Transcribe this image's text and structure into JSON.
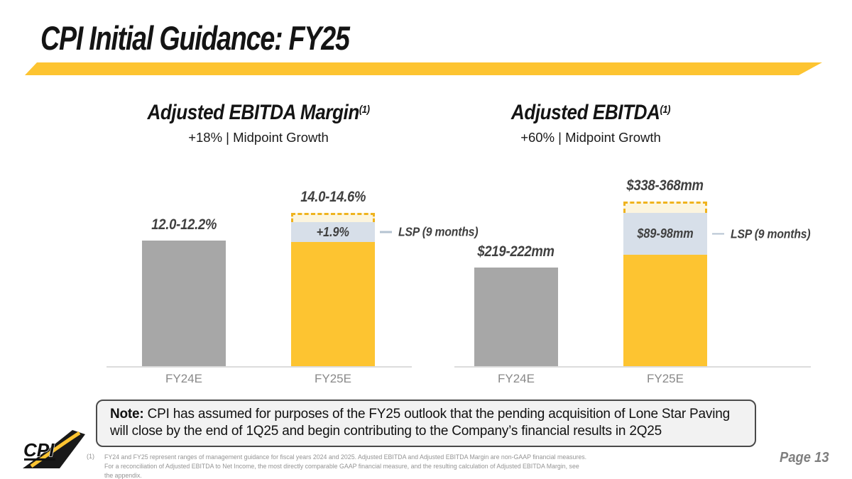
{
  "header": {
    "title": "CPI Initial Guidance: FY25"
  },
  "chart_data": [
    {
      "type": "bar",
      "title": "Adjusted EBITDA Margin",
      "title_footnote_ref": "(1)",
      "subtitle": "+18% | Midpoint Growth",
      "unit": "%",
      "categories": [
        "FY24E",
        "FY25E"
      ],
      "ylim": [
        0,
        16
      ],
      "legend": "none",
      "grid": false,
      "bars": [
        {
          "category": "FY24E",
          "label": "12.0-12.2%",
          "style": "solid",
          "value": 12.1
        },
        {
          "category": "FY25E",
          "label": "14.0-14.6%",
          "style": "stacked",
          "annotation": "LSP (9 months)",
          "segments": [
            {
              "name": "organic-base",
              "value": 12.0
            },
            {
              "name": "lsp-contribution",
              "value": 1.9,
              "label": "+1.9%"
            },
            {
              "name": "guidance-range-top",
              "value": 0.6
            }
          ]
        }
      ]
    },
    {
      "type": "bar",
      "title": "Adjusted EBITDA",
      "title_footnote_ref": "(1)",
      "subtitle": "+60% | Midpoint Growth",
      "unit": "$mm",
      "categories": [
        "FY24E",
        "FY25E"
      ],
      "ylim": [
        0,
        400
      ],
      "legend": "none",
      "grid": false,
      "bars": [
        {
          "category": "FY24E",
          "label": "$219-222mm",
          "style": "solid",
          "value": 220.5
        },
        {
          "category": "FY25E",
          "label": "$338-368mm",
          "style": "stacked",
          "annotation": "LSP (9 months)",
          "segments": [
            {
              "name": "organic-base",
              "value": 249
            },
            {
              "name": "lsp-contribution",
              "value": 93.5,
              "label": "$89-98mm"
            },
            {
              "name": "guidance-range-top",
              "value": 20
            }
          ]
        }
      ]
    }
  ],
  "note": {
    "label": "Note:",
    "text": "CPI has assumed for purposes of the FY25 outlook that the pending acquisition of Lone Star Paving will close by the end of 1Q25 and begin contributing to the Company’s financial results in 2Q25"
  },
  "footnote": {
    "marker": "(1)",
    "text": "FY24 and FY25 represent ranges of management guidance for fiscal years 2024 and 2025. Adjusted EBITDA and Adjusted EBITDA Margin are non-GAAP financial measures. For a reconciliation of Adjusted EBITDA to Net Income, the most directly comparable GAAP financial measure, and the resulting calculation of Adjusted EBITDA Margin, see the appendix."
  },
  "page": {
    "label": "Page 13"
  },
  "logo": {
    "text": "CPI"
  },
  "colors": {
    "accent_yellow": "#FDC431",
    "bar_gray": "#A7A7A7",
    "lsp_blue": "#D7DFE9",
    "range_fill": "#FCF5DF",
    "range_dash": "#EFB31E",
    "baseline": "#DCDCDC",
    "label_dark": "#404040",
    "axis_label_gray": "#898989"
  }
}
